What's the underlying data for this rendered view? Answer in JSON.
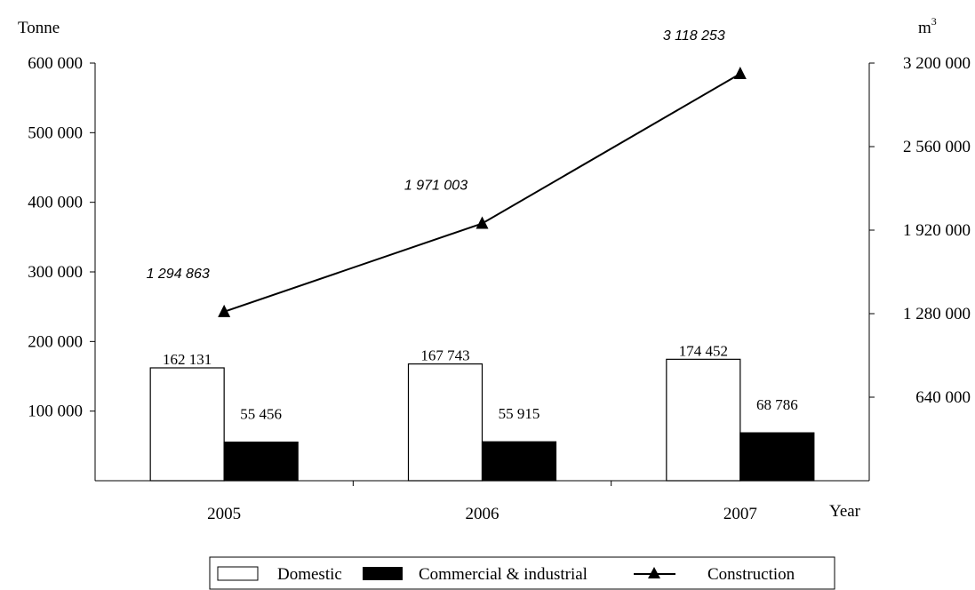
{
  "chart_data": {
    "type": "bar",
    "categories": [
      "2005",
      "2006",
      "2007"
    ],
    "xlabel": "Year",
    "ylabel_left": "Tonne",
    "ylabel_right_base": "m",
    "ylabel_right_sup": "3",
    "ylim_left": [
      0,
      600000
    ],
    "ylim_right": [
      0,
      3200000
    ],
    "left_ticks": [
      {
        "value": 100000,
        "label": "100 000"
      },
      {
        "value": 200000,
        "label": "200 000"
      },
      {
        "value": 300000,
        "label": "300 000"
      },
      {
        "value": 400000,
        "label": "400 000"
      },
      {
        "value": 500000,
        "label": "500 000"
      },
      {
        "value": 600000,
        "label": "600 000"
      }
    ],
    "right_ticks": [
      {
        "value": 640000,
        "label": "640 000"
      },
      {
        "value": 1280000,
        "label": "1 280 000"
      },
      {
        "value": 1920000,
        "label": "1 920 000"
      },
      {
        "value": 2560000,
        "label": "2 560 000"
      },
      {
        "value": 3200000,
        "label": "3 200 000"
      }
    ],
    "grid": false,
    "legend_position": "bottom",
    "series": [
      {
        "name": "Domestic",
        "kind": "bar",
        "axis": "left",
        "fill": "#ffffff",
        "values": [
          162131,
          167743,
          174452
        ],
        "labels": [
          "162 131",
          "167 743",
          "174 452"
        ]
      },
      {
        "name": "Commercial & industrial",
        "kind": "bar",
        "axis": "left",
        "fill": "#000000",
        "values": [
          55456,
          55915,
          68786
        ],
        "labels": [
          "55 456",
          "55 915",
          "68 786"
        ]
      },
      {
        "name": "Construction",
        "kind": "line",
        "axis": "right",
        "marker": "triangle",
        "values": [
          1294863,
          1971003,
          3118253
        ],
        "labels": [
          "1 294 863",
          "1 971 003",
          "3 118 253"
        ]
      }
    ]
  }
}
